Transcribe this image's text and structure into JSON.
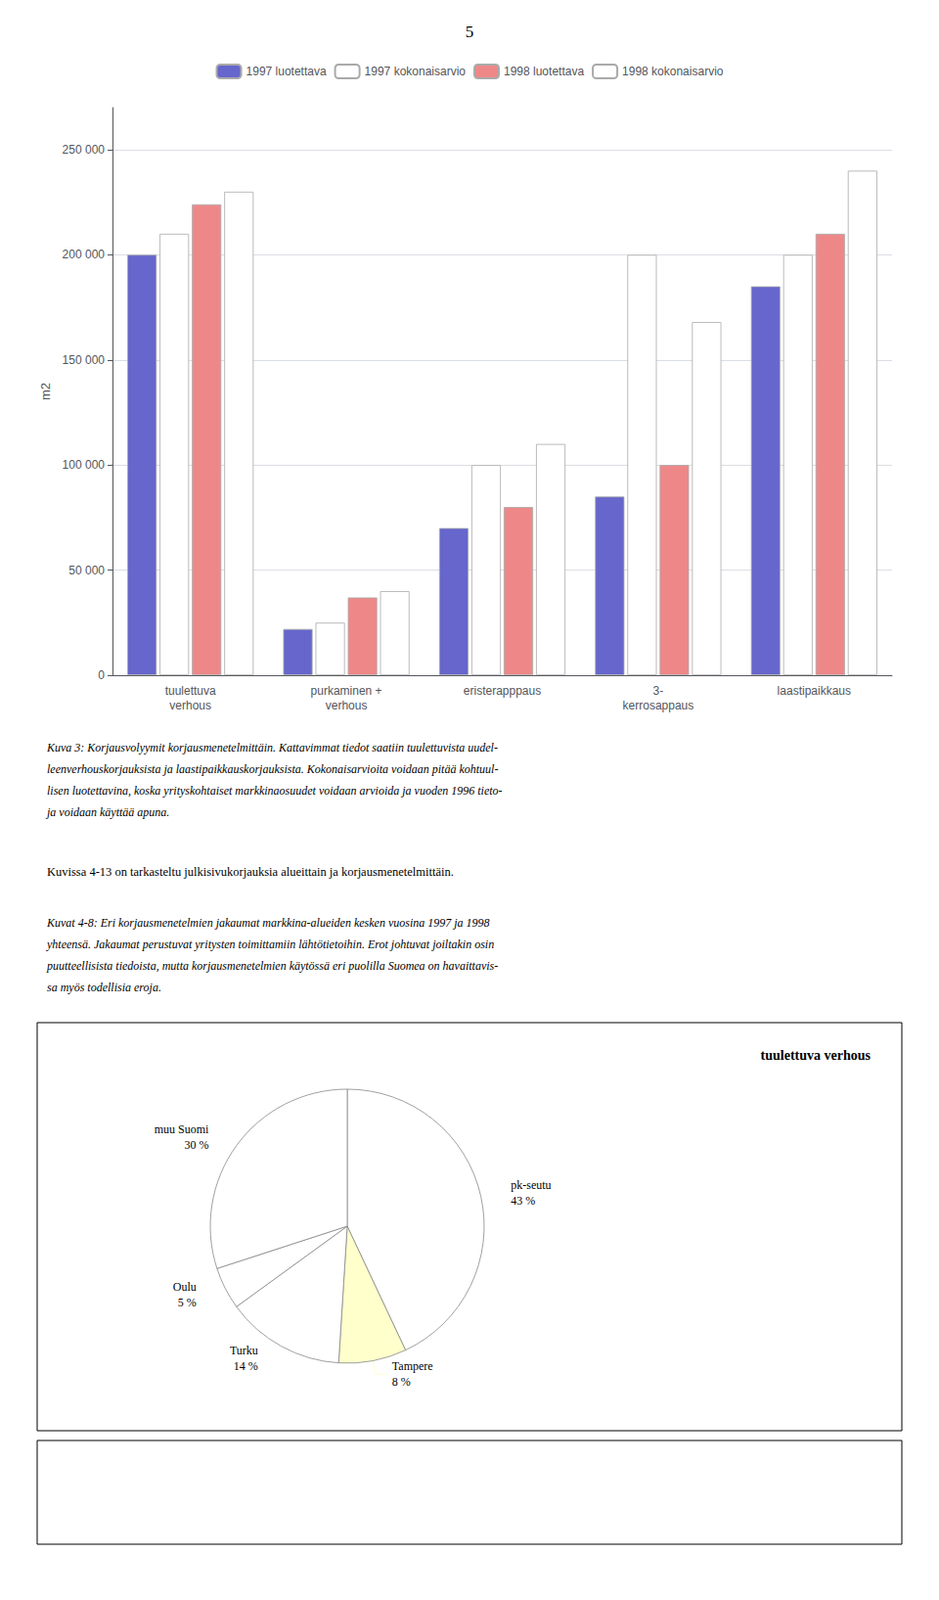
{
  "chart_data": [
    {
      "type": "bar",
      "categories": [
        "tuulettuva\nverhous",
        "purkaminen +\nverhous",
        "eristerapppaus",
        "3-\nkerrosappaus",
        "laastipaikkaus"
      ],
      "series": [
        {
          "name": "1997 luotettava",
          "color": "#6666cc",
          "values": [
            200000,
            22000,
            70000,
            85000,
            185000
          ]
        },
        {
          "name": "1997 kokonaisarvio",
          "color": "#ffffff",
          "values": [
            210000,
            25000,
            100000,
            200000,
            200000
          ]
        },
        {
          "name": "1998 luotettava",
          "color": "#ee8888",
          "values": [
            224000,
            37000,
            80000,
            100000,
            210000
          ]
        },
        {
          "name": "1998 kokonaisarvio",
          "color": "#ffffff",
          "values": [
            230000,
            40000,
            110000,
            168000,
            240000
          ]
        }
      ],
      "ylim": [
        0,
        270000
      ],
      "yticks": [
        0,
        {
          "value": 50000,
          "label": "50 000"
        },
        {
          "value": 100000,
          "label": "100 000"
        },
        {
          "value": 150000,
          "label": "150 000"
        },
        {
          "value": 200000,
          "label": "200 000"
        },
        {
          "value": 250000,
          "label": "250 000"
        }
      ],
      "ylabel": "m2",
      "grid": true,
      "legend": "top",
      "annotations": [
        "5",
        "Kuva 3: Korjausvolyymit korjausmenetelmittäin. Kattavimmat tiedot saatiin tuulettuvista uudel-",
        "leenverhouskorjauksista ja laastipaikkauskorjauksista. Kokonaisarvioita voidaan pitää kohtuul-",
        "lisen luotettavina, koska yrityskohtaiset markkinaosuudet voidaan arvioida ja vuoden 1996 tieto-",
        "ja voidaan käyttää apuna.",
        "Kuvissa 4-13 on tarkasteltu julkisivukorjauksia alueittain ja korjausmenetelmittäin.",
        "Kuvat 4-8: Eri korjausmenetelmien jakaumat markkina-alueiden kesken vuosina 1997 ja 1998",
        "yhteensä. Jakaumat perustuvat yritysten toimittamiin lähtötietoihin. Erot johtuvat joiltakin osin",
        "puutteellisista tiedoista, mutta korjausmenetelmien käytössä eri puolilla Suomea on havaittavis-",
        "sa myös todellisia eroja."
      ]
    },
    {
      "type": "pie",
      "title": "tuulettuva verhous",
      "labels": [
        "pk-seutu",
        "Tampere",
        "Turku",
        "Oulu",
        "muu Suomi"
      ],
      "values": [
        43,
        8,
        14,
        5,
        30
      ],
      "value_labels": [
        "43 %",
        "8 %",
        "14 %",
        "5 %",
        "30 %"
      ],
      "data_labels": true,
      "colors": [
        "#ffffff",
        "#ffffcc",
        "#ffffff",
        "#ffffff",
        "#ffffff"
      ]
    }
  ]
}
